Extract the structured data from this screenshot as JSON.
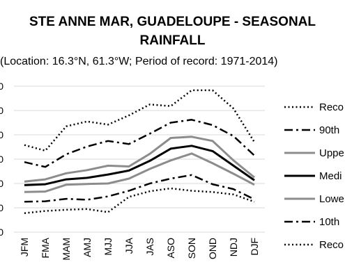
{
  "chart_data": {
    "type": "line",
    "title_line1": "STE ANNE MAR, GUADELOUPE - SEASONAL",
    "title_line2": "RAINFALL",
    "subtitle": "(Location: 16.3°N, 61.3°W; Period of record: 1971-2014)",
    "categories": [
      "JFM",
      "FMA",
      "MAM",
      "AMJ",
      "MJJ",
      "JJA",
      "JAS",
      "ASO",
      "SON",
      "OND",
      "NDJ",
      "DJF"
    ],
    "y_tick_labels": [
      "0",
      "0",
      "0",
      "0",
      "0",
      "0",
      "0"
    ],
    "ylim": [
      0,
      6
    ],
    "grid": true,
    "legend_position": "right",
    "series": [
      {
        "name": "Reco",
        "style": "dotted",
        "color": "#000000",
        "values": [
          3.58,
          3.35,
          4.35,
          4.55,
          4.42,
          4.8,
          5.25,
          5.18,
          5.83,
          5.83,
          5.08,
          3.7
        ]
      },
      {
        "name": "90th",
        "style": "dashdot",
        "color": "#000000",
        "values": [
          2.88,
          2.68,
          3.2,
          3.52,
          3.75,
          3.62,
          4.05,
          4.5,
          4.62,
          4.4,
          3.95,
          3.15
        ]
      },
      {
        "name": "Uppe",
        "style": "solid-gray",
        "color": "#8c8c8c",
        "values": [
          2.08,
          2.17,
          2.42,
          2.55,
          2.73,
          2.7,
          3.22,
          3.87,
          3.92,
          3.75,
          2.95,
          2.25
        ]
      },
      {
        "name": "Medi",
        "style": "solid",
        "color": "#000000",
        "values": [
          1.93,
          1.97,
          2.17,
          2.23,
          2.37,
          2.53,
          2.93,
          3.43,
          3.55,
          3.33,
          2.73,
          2.13
        ]
      },
      {
        "name": "Lowe",
        "style": "solid-gray",
        "color": "#8c8c8c",
        "values": [
          1.65,
          1.67,
          1.95,
          1.98,
          2.0,
          2.2,
          2.6,
          2.95,
          3.23,
          2.83,
          2.4,
          1.95
        ]
      },
      {
        "name": "10th",
        "style": "dashdot",
        "color": "#000000",
        "values": [
          1.25,
          1.27,
          1.37,
          1.33,
          1.47,
          1.7,
          2.0,
          2.2,
          2.35,
          1.97,
          1.77,
          1.35
        ]
      },
      {
        "name": "Reco",
        "style": "dotted",
        "color": "#000000",
        "values": [
          0.78,
          0.87,
          0.92,
          0.95,
          0.82,
          1.45,
          1.68,
          1.8,
          1.7,
          1.65,
          1.55,
          1.25
        ]
      }
    ]
  }
}
